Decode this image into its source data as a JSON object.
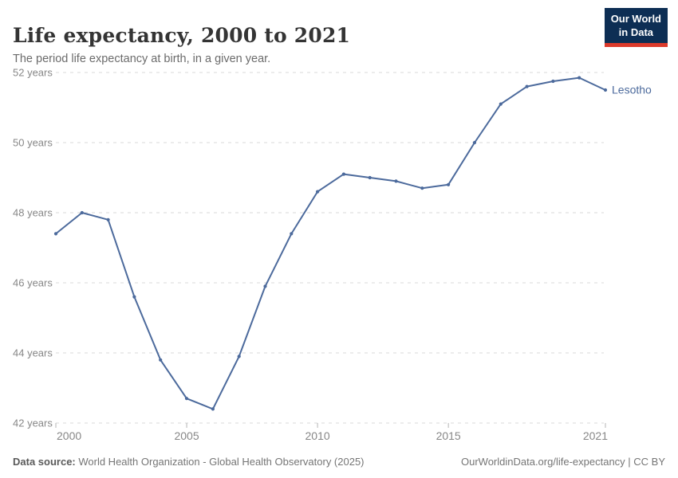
{
  "header": {
    "title": "Life expectancy, 2000 to 2021",
    "subtitle": "The period life expectancy at birth, in a given year."
  },
  "logo": {
    "line1": "Our World",
    "line2": "in Data",
    "bg_color": "#0d2e54",
    "accent_color": "#dc3a2b"
  },
  "chart_data": {
    "type": "line",
    "title": "Life expectancy, 2000 to 2021",
    "xlabel": "",
    "ylabel": "",
    "xlim": [
      2000,
      2021
    ],
    "ylim": [
      42,
      52
    ],
    "grid": "horizontal-dashed",
    "legend_position": "end-of-line-label",
    "x": [
      2000,
      2001,
      2002,
      2003,
      2004,
      2005,
      2006,
      2007,
      2008,
      2009,
      2010,
      2011,
      2012,
      2013,
      2014,
      2015,
      2016,
      2017,
      2018,
      2019,
      2020,
      2021
    ],
    "series": [
      {
        "name": "Lesotho",
        "color": "#4c6a9c",
        "values": [
          47.4,
          48.0,
          47.8,
          45.6,
          43.8,
          42.7,
          42.4,
          43.9,
          45.9,
          47.4,
          48.6,
          49.1,
          49.0,
          48.9,
          48.7,
          48.8,
          50.0,
          51.1,
          51.6,
          51.75,
          51.85,
          51.5
        ]
      }
    ],
    "yticks": [
      {
        "value": 42,
        "label": "42 years"
      },
      {
        "value": 44,
        "label": "44 years"
      },
      {
        "value": 46,
        "label": "46 years"
      },
      {
        "value": 48,
        "label": "48 years"
      },
      {
        "value": 50,
        "label": "50 years"
      },
      {
        "value": 52,
        "label": "52 years"
      }
    ],
    "xticks": [
      {
        "value": 2000,
        "label": "2000"
      },
      {
        "value": 2005,
        "label": "2005"
      },
      {
        "value": 2010,
        "label": "2010"
      },
      {
        "value": 2015,
        "label": "2015"
      },
      {
        "value": 2021,
        "label": "2021"
      }
    ]
  },
  "footer": {
    "source_label": "Data source:",
    "source_text": " World Health Organization - Global Health Observatory (2025)",
    "credit": "OurWorldinData.org/life-expectancy | CC BY"
  }
}
